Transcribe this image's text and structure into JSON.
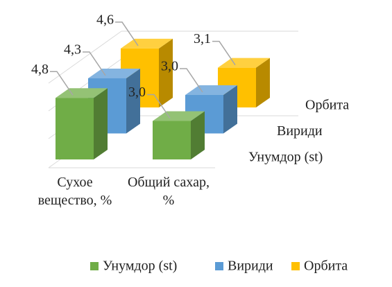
{
  "chart_data": {
    "type": "bar3d",
    "categories": [
      "Сухое вещество, %",
      "Общий сахар, %"
    ],
    "series": [
      {
        "name": "Унумдор (st)",
        "color": "#70ad47",
        "values": [
          4.8,
          3.0
        ],
        "value_labels": [
          "4,8",
          "3,0"
        ]
      },
      {
        "name": "Вириди",
        "color": "#5b9bd5",
        "values": [
          4.3,
          3.0
        ],
        "value_labels": [
          "4,3",
          "3,0"
        ]
      },
      {
        "name": "Орбита",
        "color": "#ffc000",
        "values": [
          4.6,
          3.1
        ],
        "value_labels": [
          "4,6",
          "3,1"
        ]
      }
    ],
    "legend": "bottom"
  }
}
